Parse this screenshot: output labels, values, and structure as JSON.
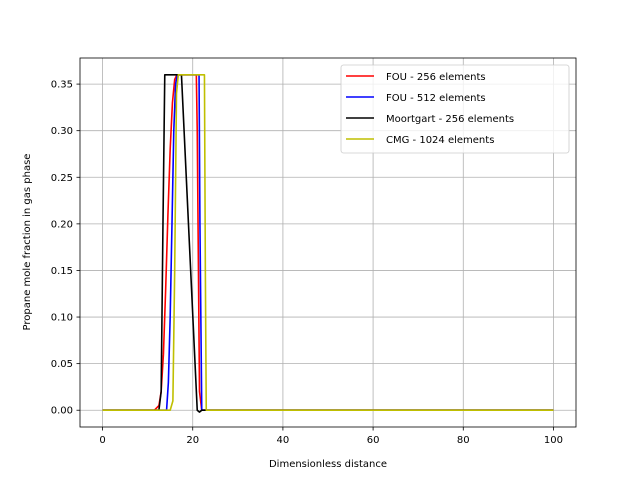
{
  "chart_data": {
    "type": "line",
    "xlabel": "Dimensionless distance",
    "ylabel": "Propane mole fraction in gas phase",
    "xlim": [
      -5,
      105
    ],
    "ylim": [
      -0.018,
      0.378
    ],
    "xticks": [
      0,
      20,
      40,
      60,
      80,
      100
    ],
    "yticks": [
      0.0,
      0.05,
      0.1,
      0.15,
      0.2,
      0.25,
      0.3,
      0.35
    ],
    "xtick_labels": [
      "0",
      "20",
      "40",
      "60",
      "80",
      "100"
    ],
    "ytick_labels": [
      "0.00",
      "0.05",
      "0.10",
      "0.15",
      "0.20",
      "0.25",
      "0.30",
      "0.35"
    ],
    "grid": true,
    "legend_position": "top-right",
    "series": [
      {
        "name": "FOU - 256 elements",
        "color": "#ff0000",
        "x": [
          0,
          11.5,
          12.5,
          13.0,
          13.5,
          14.0,
          14.5,
          15.0,
          15.5,
          16.0,
          16.5,
          20.8,
          21.0,
          21.5,
          22.0,
          100
        ],
        "y": [
          0,
          0.0,
          0.005,
          0.02,
          0.06,
          0.13,
          0.21,
          0.28,
          0.33,
          0.355,
          0.36,
          0.36,
          0.3,
          0.02,
          0.0,
          0.0
        ]
      },
      {
        "name": "FOU - 512 elements",
        "color": "#0000ff",
        "x": [
          0,
          14.2,
          14.6,
          15.0,
          15.4,
          15.8,
          16.2,
          16.6,
          21.4,
          21.6,
          22.0,
          100
        ],
        "y": [
          0,
          0.0,
          0.03,
          0.1,
          0.2,
          0.3,
          0.35,
          0.36,
          0.36,
          0.2,
          0.0,
          0.0
        ]
      },
      {
        "name": "Moortgart - 256 elements",
        "color": "#000000",
        "x": [
          0,
          12.5,
          13.0,
          13.4,
          13.8,
          17.5,
          21.0,
          21.5,
          22.0,
          100
        ],
        "y": [
          0,
          0.0,
          0.02,
          0.2,
          0.36,
          0.36,
          0.0,
          -0.002,
          0.0,
          0.0
        ]
      },
      {
        "name": "CMG - 1024 elements",
        "color": "#bfbf00",
        "x": [
          0,
          15.0,
          15.6,
          16.0,
          16.4,
          16.8,
          22.6,
          22.8,
          23.0,
          100
        ],
        "y": [
          0,
          0.0,
          0.01,
          0.15,
          0.34,
          0.36,
          0.36,
          0.15,
          0.0,
          0.0
        ]
      }
    ]
  }
}
